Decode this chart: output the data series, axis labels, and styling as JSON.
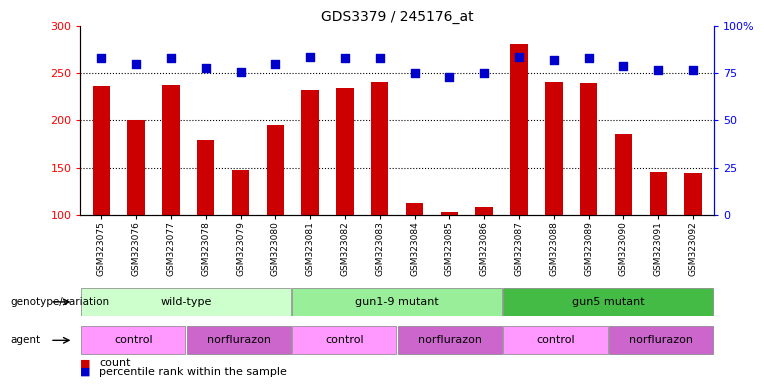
{
  "title": "GDS3379 / 245176_at",
  "samples": [
    "GSM323075",
    "GSM323076",
    "GSM323077",
    "GSM323078",
    "GSM323079",
    "GSM323080",
    "GSM323081",
    "GSM323082",
    "GSM323083",
    "GSM323084",
    "GSM323085",
    "GSM323086",
    "GSM323087",
    "GSM323088",
    "GSM323089",
    "GSM323090",
    "GSM323091",
    "GSM323092"
  ],
  "counts": [
    237,
    200,
    238,
    179,
    147,
    195,
    232,
    235,
    241,
    112,
    103,
    108,
    281,
    241,
    240,
    186,
    145,
    144
  ],
  "percentile_ranks": [
    83,
    80,
    83,
    78,
    76,
    80,
    84,
    83,
    83,
    75,
    73,
    75,
    84,
    82,
    83,
    79,
    77,
    77
  ],
  "bar_color": "#cc0000",
  "dot_color": "#0000cc",
  "ylim_left": [
    100,
    300
  ],
  "ylim_right": [
    0,
    100
  ],
  "yticks_left": [
    100,
    150,
    200,
    250,
    300
  ],
  "yticks_right": [
    0,
    25,
    50,
    75,
    100
  ],
  "ytick_labels_right": [
    "0",
    "25",
    "50",
    "75",
    "100%"
  ],
  "grid_values": [
    150,
    200,
    250
  ],
  "genotype_groups": [
    {
      "label": "wild-type",
      "start": 0,
      "end": 6,
      "color": "#ccffcc"
    },
    {
      "label": "gun1-9 mutant",
      "start": 6,
      "end": 12,
      "color": "#99ee99"
    },
    {
      "label": "gun5 mutant",
      "start": 12,
      "end": 18,
      "color": "#44bb44"
    }
  ],
  "agent_groups": [
    {
      "label": "control",
      "start": 0,
      "end": 3,
      "color": "#ff99ff"
    },
    {
      "label": "norflurazon",
      "start": 3,
      "end": 6,
      "color": "#cc66cc"
    },
    {
      "label": "control",
      "start": 6,
      "end": 9,
      "color": "#ff99ff"
    },
    {
      "label": "norflurazon",
      "start": 9,
      "end": 12,
      "color": "#cc66cc"
    },
    {
      "label": "control",
      "start": 12,
      "end": 15,
      "color": "#ff99ff"
    },
    {
      "label": "norflurazon",
      "start": 15,
      "end": 18,
      "color": "#cc66cc"
    }
  ],
  "legend_count_label": "count",
  "legend_percentile_label": "percentile rank within the sample",
  "xlabel_genotype": "genotype/variation",
  "xlabel_agent": "agent",
  "bar_width": 0.5,
  "dot_size": 40,
  "background_color": "#ffffff",
  "plot_bg_color": "#ffffff"
}
